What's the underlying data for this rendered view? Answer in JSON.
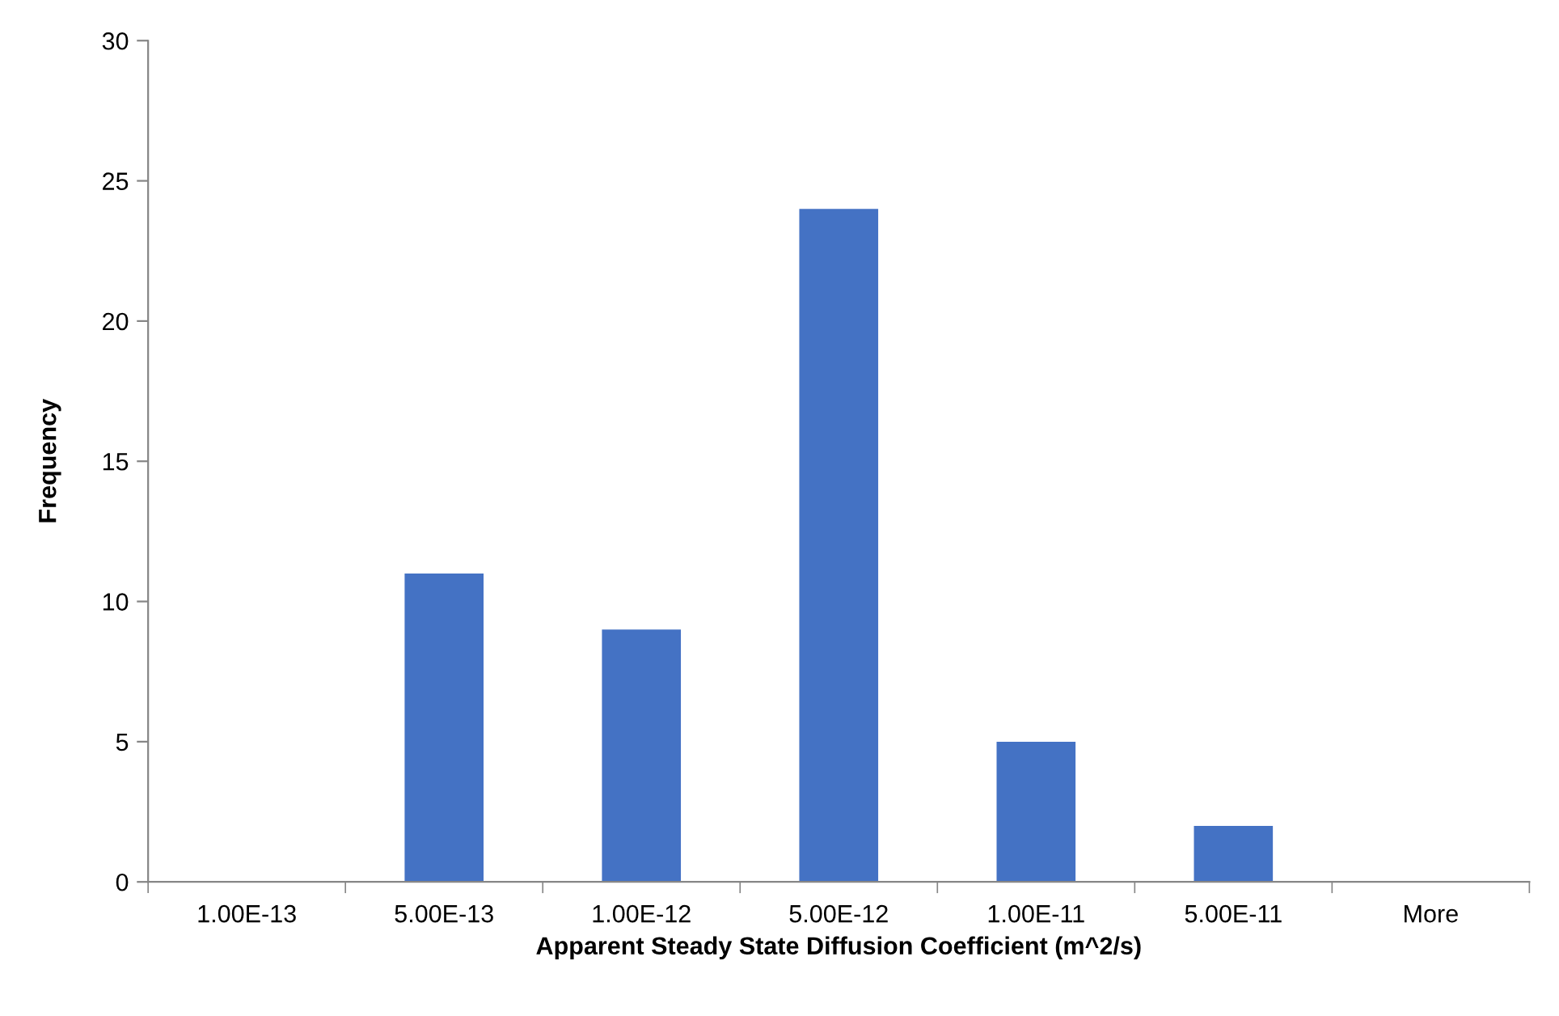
{
  "chart_data": {
    "type": "bar",
    "xlabel": "Apparent Steady State Diffusion Coefficient (m^2/s)",
    "ylabel": "Frequency",
    "categories": [
      "1.00E-13",
      "5.00E-13",
      "1.00E-12",
      "5.00E-12",
      "1.00E-11",
      "5.00E-11",
      "More"
    ],
    "values": [
      0,
      11,
      9,
      24,
      5,
      2,
      0
    ],
    "color": "#4472c4",
    "ylim": [
      0,
      30
    ],
    "yticks": [
      0,
      5,
      10,
      15,
      20,
      25,
      30
    ],
    "grid": false,
    "legend": false
  }
}
